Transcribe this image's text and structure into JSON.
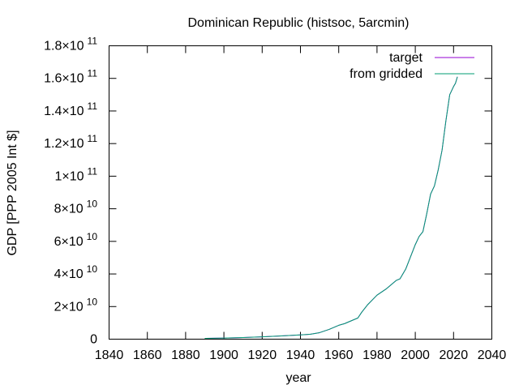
{
  "chart_data": {
    "type": "line",
    "title": "Dominican Republic (histsoc, 5arcmin)",
    "xlabel": "year",
    "ylabel": "GDP [PPP 2005 Int $]",
    "xlim": [
      1840,
      2040
    ],
    "ylim": [
      0,
      180000000000
    ],
    "xticks": [
      1840,
      1860,
      1880,
      1900,
      1920,
      1940,
      1960,
      1980,
      2000,
      2020,
      2040
    ],
    "yticks": [
      {
        "value": 0,
        "mantissa": "0",
        "exp": ""
      },
      {
        "value": 20000000000,
        "mantissa": "2×10",
        "exp": "10"
      },
      {
        "value": 40000000000,
        "mantissa": "4×10",
        "exp": "10"
      },
      {
        "value": 60000000000,
        "mantissa": "6×10",
        "exp": "10"
      },
      {
        "value": 80000000000,
        "mantissa": "8×10",
        "exp": "10"
      },
      {
        "value": 100000000000,
        "mantissa": "1×10",
        "exp": "11"
      },
      {
        "value": 120000000000,
        "mantissa": "1.2×10",
        "exp": "11"
      },
      {
        "value": 140000000000,
        "mantissa": "1.4×10",
        "exp": "11"
      },
      {
        "value": 160000000000,
        "mantissa": "1.6×10",
        "exp": "11"
      },
      {
        "value": 180000000000,
        "mantissa": "1.8×10",
        "exp": "11"
      }
    ],
    "legend_position": "top-right",
    "grid": false,
    "series": [
      {
        "name": "target",
        "color": "#9400d3",
        "x": [
          1890,
          1900,
          1910,
          1920,
          1930,
          1940,
          1945,
          1950,
          1955,
          1960,
          1963,
          1965,
          1970,
          1972,
          1975,
          1980,
          1985,
          1988,
          1990,
          1992,
          1995,
          1998,
          2000,
          2002,
          2004,
          2006,
          2008,
          2010,
          2012,
          2014,
          2016,
          2018,
          2020,
          2021,
          2022
        ],
        "y": [
          500000000,
          700000000,
          1000000000,
          1400000000,
          2000000000,
          2600000000,
          3000000000,
          4000000000,
          6000000000,
          8500000000,
          9500000000,
          10500000000,
          13000000000,
          16500000000,
          21000000000,
          27000000000,
          31000000000,
          34000000000,
          36000000000,
          37000000000,
          43000000000,
          52000000000,
          58000000000,
          63000000000,
          66000000000,
          77000000000,
          89000000000,
          94000000000,
          104000000000,
          116000000000,
          134000000000,
          150000000000,
          155000000000,
          157000000000,
          161000000000
        ]
      },
      {
        "name": "from gridded",
        "color": "#009e73",
        "x": [
          1890,
          1900,
          1910,
          1920,
          1930,
          1940,
          1945,
          1950,
          1955,
          1960,
          1963,
          1965,
          1970,
          1972,
          1975,
          1980,
          1985,
          1988,
          1990,
          1992,
          1995,
          1998,
          2000,
          2002,
          2004,
          2006,
          2008,
          2010,
          2012,
          2014,
          2016,
          2018,
          2020,
          2021,
          2022
        ],
        "y": [
          500000000,
          700000000,
          1000000000,
          1400000000,
          2000000000,
          2600000000,
          3000000000,
          4000000000,
          6000000000,
          8500000000,
          9500000000,
          10500000000,
          13000000000,
          16500000000,
          21000000000,
          27000000000,
          31000000000,
          34000000000,
          36000000000,
          37000000000,
          43000000000,
          52000000000,
          58000000000,
          63000000000,
          66000000000,
          77000000000,
          89000000000,
          94000000000,
          104000000000,
          116000000000,
          134000000000,
          150000000000,
          155000000000,
          157000000000,
          161000000000
        ]
      }
    ]
  }
}
